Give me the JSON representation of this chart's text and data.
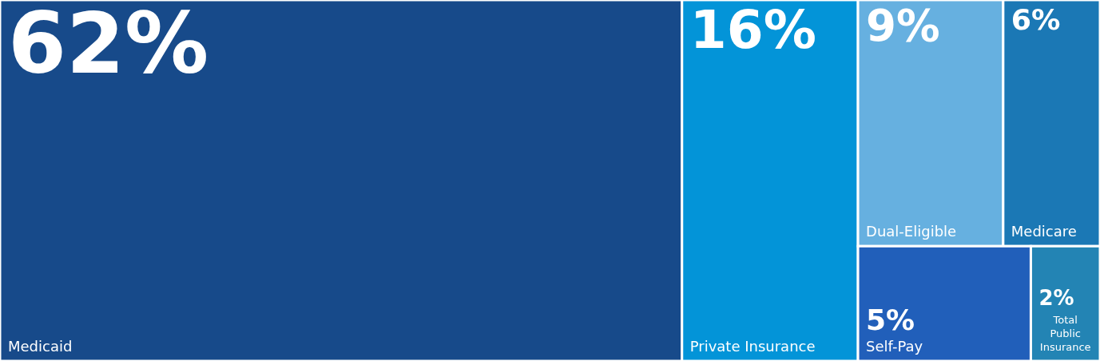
{
  "chart_data": {
    "type": "other",
    "categories": [
      "Medicaid",
      "Private Insurance",
      "Dual-Eligible",
      "Medicare",
      "Self-Pay",
      "Total Public Insurance"
    ],
    "values": [
      62,
      16,
      9,
      6,
      5,
      2
    ],
    "value_labels": [
      "62%",
      "16%",
      "9%",
      "6%",
      "5%",
      "2%"
    ],
    "colors": [
      "#174a8a",
      "#0394d8",
      "#66b0e0",
      "#1b78b5",
      "#215fba",
      "#2384b4"
    ]
  }
}
